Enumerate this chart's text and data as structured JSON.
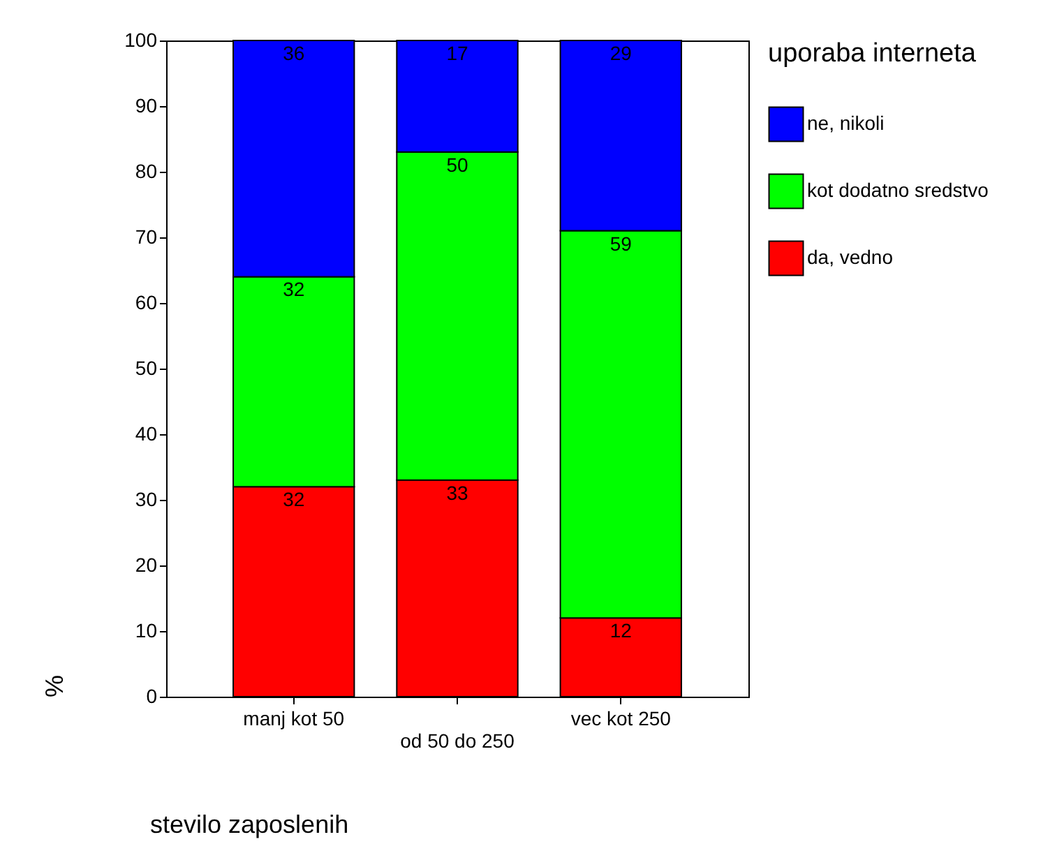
{
  "chart_data": {
    "type": "bar",
    "stacked": true,
    "xlabel": "stevilo zaposlenih",
    "ylabel": "%",
    "legend_title": "uporaba interneta",
    "legend": "right",
    "data_labels": true,
    "grid": false,
    "categories": [
      "manj kot 50",
      "od 50 do 250",
      "vec kot 250"
    ],
    "ylim": [
      0,
      100
    ],
    "yticks": [
      0,
      10,
      20,
      30,
      40,
      50,
      60,
      70,
      80,
      90,
      100
    ],
    "series": [
      {
        "name": "da, vedno",
        "color": "#ff0000",
        "values": [
          32,
          33,
          12
        ]
      },
      {
        "name": "kot dodatno sredstvo",
        "color": "#00ff00",
        "values": [
          32,
          50,
          59
        ]
      },
      {
        "name": "ne, nikoli",
        "color": "#0000ff",
        "values": [
          36,
          17,
          29
        ]
      }
    ]
  }
}
